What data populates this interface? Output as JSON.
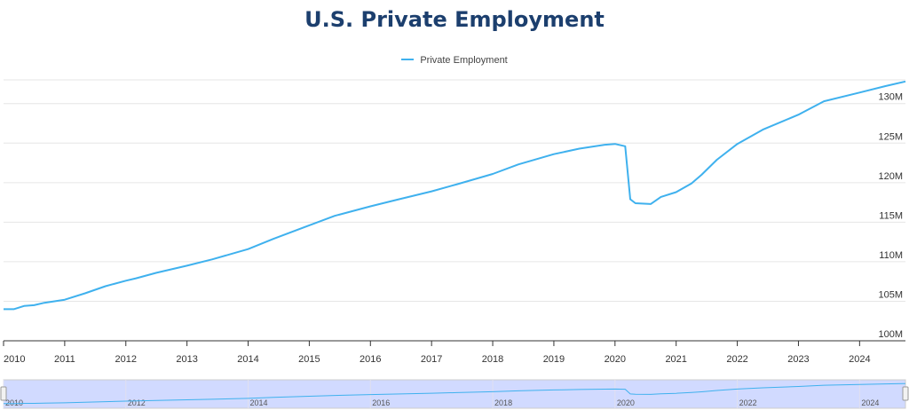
{
  "chart_data": {
    "type": "line",
    "title": "U.S. Private Employment",
    "xlabel": "",
    "ylabel": "",
    "x_range": [
      "2010-01",
      "2024-10"
    ],
    "ylim": [
      100,
      133
    ],
    "y_ticks": [
      100,
      105,
      110,
      115,
      120,
      125,
      130
    ],
    "y_tick_labels": [
      "100M",
      "105M",
      "110M",
      "115M",
      "120M",
      "125M",
      "130M"
    ],
    "x_ticks": [
      "2010",
      "2011",
      "2012",
      "2013",
      "2014",
      "2015",
      "2016",
      "2017",
      "2018",
      "2019",
      "2020",
      "2021",
      "2022",
      "2023",
      "2024"
    ],
    "navigator_ticks": [
      "2010",
      "2012",
      "2014",
      "2016",
      "2018",
      "2020",
      "2022",
      "2024"
    ],
    "grid": true,
    "legend_position": "top-center",
    "series": [
      {
        "name": "Private Employment",
        "color": "#3fb1ee",
        "points": [
          [
            "2010-01",
            104.0
          ],
          [
            "2010-03",
            104.0
          ],
          [
            "2010-05",
            104.4
          ],
          [
            "2010-07",
            104.5
          ],
          [
            "2010-09",
            104.8
          ],
          [
            "2011-01",
            105.2
          ],
          [
            "2011-05",
            106.0
          ],
          [
            "2011-09",
            106.9
          ],
          [
            "2012-01",
            107.6
          ],
          [
            "2012-03",
            107.9
          ],
          [
            "2012-07",
            108.6
          ],
          [
            "2013-01",
            109.5
          ],
          [
            "2013-06",
            110.3
          ],
          [
            "2014-01",
            111.6
          ],
          [
            "2014-06",
            112.9
          ],
          [
            "2015-01",
            114.6
          ],
          [
            "2015-06",
            115.8
          ],
          [
            "2016-01",
            117.0
          ],
          [
            "2016-06",
            117.8
          ],
          [
            "2017-01",
            118.9
          ],
          [
            "2017-06",
            119.8
          ],
          [
            "2018-01",
            121.1
          ],
          [
            "2018-06",
            122.3
          ],
          [
            "2019-01",
            123.6
          ],
          [
            "2019-06",
            124.3
          ],
          [
            "2019-11",
            124.8
          ],
          [
            "2020-01",
            124.9
          ],
          [
            "2020-03",
            124.6
          ],
          [
            "2020-04",
            117.9
          ],
          [
            "2020-05",
            117.4
          ],
          [
            "2020-08",
            117.3
          ],
          [
            "2020-10",
            118.2
          ],
          [
            "2021-01",
            118.8
          ],
          [
            "2021-04",
            119.9
          ],
          [
            "2021-06",
            121.0
          ],
          [
            "2021-09",
            122.9
          ],
          [
            "2022-01",
            124.9
          ],
          [
            "2022-06",
            126.7
          ],
          [
            "2023-01",
            128.6
          ],
          [
            "2023-06",
            130.3
          ],
          [
            "2024-01",
            131.4
          ],
          [
            "2024-06",
            132.2
          ],
          [
            "2024-10",
            132.8
          ]
        ]
      }
    ]
  }
}
